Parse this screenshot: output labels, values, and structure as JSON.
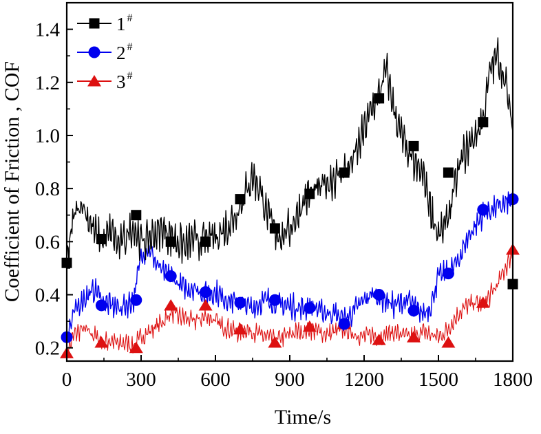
{
  "chart_data": {
    "type": "line",
    "title": "",
    "xlabel": "Time/s",
    "ylabel": "Coefficient of Friction , COF",
    "xlim": [
      0,
      1800
    ],
    "ylim": [
      0.15,
      1.5
    ],
    "xticks": [
      0,
      300,
      600,
      900,
      1200,
      1500,
      1800
    ],
    "xtick_labels": [
      "0",
      "300",
      "600",
      "900",
      "1200",
      "1500",
      "1800"
    ],
    "yticks": [
      0.2,
      0.4,
      0.6,
      0.8,
      1.0,
      1.2,
      1.4
    ],
    "ytick_labels": [
      "0.2",
      "0.4",
      "0.6",
      "0.8",
      "1.0",
      "1.2",
      "1.4"
    ],
    "grid": false,
    "legend_position": "top-left",
    "series": [
      {
        "name": "1",
        "name_superscript": "#",
        "color": "#000000",
        "marker": "square",
        "x": [
          0,
          30,
          60,
          90,
          120,
          150,
          180,
          210,
          240,
          270,
          300,
          330,
          360,
          390,
          420,
          450,
          480,
          510,
          540,
          570,
          600,
          630,
          660,
          690,
          720,
          750,
          780,
          810,
          840,
          870,
          900,
          930,
          960,
          990,
          1020,
          1050,
          1080,
          1110,
          1140,
          1170,
          1200,
          1230,
          1260,
          1290,
          1320,
          1350,
          1380,
          1410,
          1440,
          1470,
          1500,
          1530,
          1560,
          1590,
          1620,
          1650,
          1680,
          1710,
          1740,
          1770,
          1800
        ],
        "values": [
          0.52,
          0.7,
          0.75,
          0.68,
          0.62,
          0.6,
          0.64,
          0.58,
          0.62,
          0.66,
          0.6,
          0.61,
          0.63,
          0.65,
          0.62,
          0.6,
          0.58,
          0.61,
          0.6,
          0.61,
          0.62,
          0.64,
          0.67,
          0.72,
          0.78,
          0.85,
          0.8,
          0.7,
          0.64,
          0.62,
          0.65,
          0.7,
          0.76,
          0.78,
          0.8,
          0.82,
          0.84,
          0.86,
          0.88,
          0.94,
          1.02,
          1.1,
          1.15,
          1.25,
          1.1,
          1.0,
          0.92,
          0.88,
          0.85,
          0.72,
          0.62,
          0.66,
          0.78,
          0.9,
          0.96,
          1.0,
          1.06,
          1.25,
          1.3,
          1.2,
          1.02
        ],
        "marker_x": [
          0,
          140,
          280,
          420,
          560,
          700,
          840,
          980,
          1120,
          1260,
          1400,
          1540,
          1680,
          1800
        ],
        "marker_values": [
          0.52,
          0.61,
          0.7,
          0.6,
          0.6,
          0.76,
          0.65,
          0.78,
          0.86,
          1.14,
          0.96,
          0.86,
          1.05,
          0.44
        ]
      },
      {
        "name": "2",
        "name_superscript": "#",
        "color": "#0000ee",
        "marker": "circle",
        "x": [
          0,
          30,
          60,
          90,
          120,
          150,
          180,
          210,
          240,
          270,
          300,
          330,
          360,
          390,
          420,
          450,
          480,
          510,
          540,
          570,
          600,
          630,
          660,
          690,
          720,
          750,
          780,
          810,
          840,
          870,
          900,
          930,
          960,
          990,
          1020,
          1050,
          1080,
          1110,
          1140,
          1170,
          1200,
          1230,
          1260,
          1290,
          1320,
          1350,
          1380,
          1410,
          1440,
          1470,
          1500,
          1530,
          1560,
          1590,
          1620,
          1650,
          1680,
          1710,
          1740,
          1770,
          1800
        ],
        "values": [
          0.24,
          0.33,
          0.38,
          0.4,
          0.42,
          0.37,
          0.36,
          0.35,
          0.36,
          0.38,
          0.55,
          0.58,
          0.52,
          0.48,
          0.47,
          0.44,
          0.42,
          0.43,
          0.41,
          0.4,
          0.41,
          0.39,
          0.38,
          0.37,
          0.36,
          0.35,
          0.37,
          0.38,
          0.37,
          0.36,
          0.36,
          0.35,
          0.35,
          0.36,
          0.34,
          0.33,
          0.33,
          0.31,
          0.32,
          0.35,
          0.38,
          0.4,
          0.39,
          0.38,
          0.36,
          0.37,
          0.38,
          0.34,
          0.33,
          0.36,
          0.47,
          0.48,
          0.5,
          0.55,
          0.62,
          0.66,
          0.7,
          0.72,
          0.73,
          0.74,
          0.76
        ],
        "marker_x": [
          0,
          140,
          280,
          420,
          560,
          700,
          840,
          980,
          1120,
          1260,
          1400,
          1540,
          1680,
          1800
        ],
        "marker_values": [
          0.24,
          0.36,
          0.38,
          0.47,
          0.41,
          0.37,
          0.38,
          0.35,
          0.29,
          0.4,
          0.34,
          0.48,
          0.72,
          0.76
        ]
      },
      {
        "name": "3",
        "name_superscript": "#",
        "color": "#dd1111",
        "marker": "triangle",
        "x": [
          0,
          30,
          60,
          90,
          120,
          150,
          180,
          210,
          240,
          270,
          300,
          330,
          360,
          390,
          420,
          450,
          480,
          510,
          540,
          570,
          600,
          630,
          660,
          690,
          720,
          750,
          780,
          810,
          840,
          870,
          900,
          930,
          960,
          990,
          1020,
          1050,
          1080,
          1110,
          1140,
          1170,
          1200,
          1230,
          1260,
          1290,
          1320,
          1350,
          1380,
          1410,
          1440,
          1470,
          1500,
          1530,
          1560,
          1590,
          1620,
          1650,
          1680,
          1710,
          1740,
          1770,
          1800
        ],
        "values": [
          0.18,
          0.25,
          0.27,
          0.26,
          0.24,
          0.22,
          0.23,
          0.21,
          0.22,
          0.21,
          0.24,
          0.26,
          0.28,
          0.3,
          0.33,
          0.32,
          0.31,
          0.3,
          0.31,
          0.32,
          0.3,
          0.28,
          0.27,
          0.26,
          0.27,
          0.26,
          0.25,
          0.24,
          0.23,
          0.24,
          0.25,
          0.26,
          0.26,
          0.27,
          0.26,
          0.25,
          0.26,
          0.27,
          0.26,
          0.25,
          0.24,
          0.25,
          0.24,
          0.25,
          0.26,
          0.25,
          0.24,
          0.25,
          0.26,
          0.25,
          0.24,
          0.26,
          0.3,
          0.34,
          0.36,
          0.37,
          0.36,
          0.4,
          0.44,
          0.5,
          0.56
        ],
        "marker_x": [
          0,
          140,
          280,
          420,
          560,
          700,
          840,
          980,
          1120,
          1260,
          1400,
          1540,
          1680,
          1800
        ],
        "marker_values": [
          0.18,
          0.22,
          0.2,
          0.36,
          0.36,
          0.27,
          0.22,
          0.28,
          0.29,
          0.23,
          0.24,
          0.22,
          0.37,
          0.57
        ]
      }
    ]
  }
}
